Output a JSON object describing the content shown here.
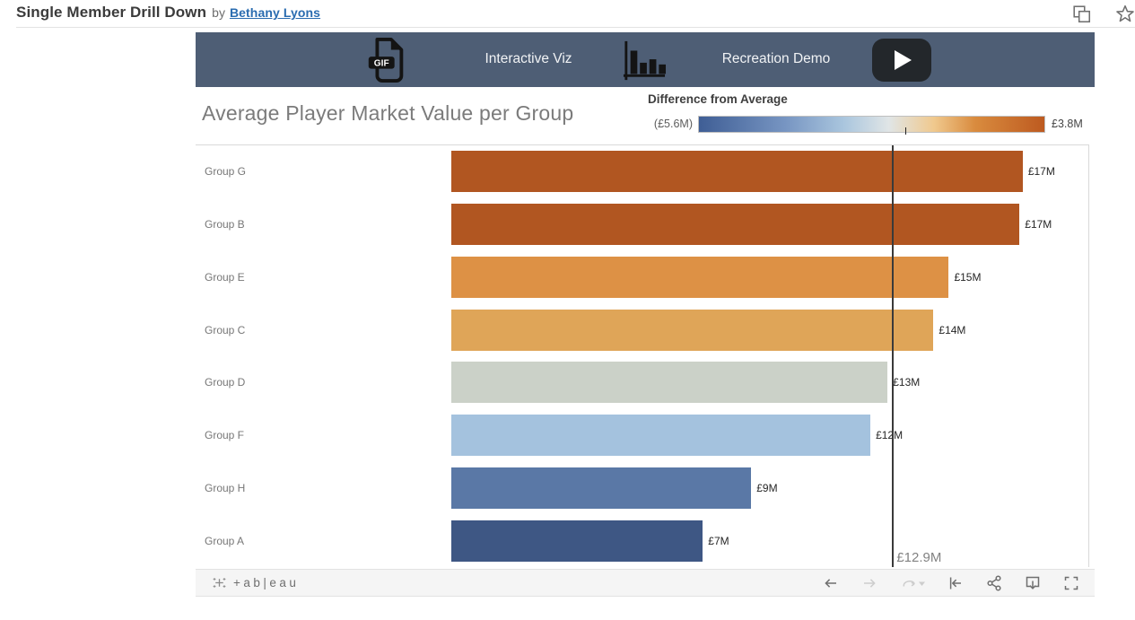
{
  "colors": {
    "banner_bg": "#4e5e75",
    "link": "#2a6cb0",
    "reference_line": "#3a3a3a",
    "toolbar_bg": "#f5f5f5"
  },
  "page_header": {
    "title": "Single Member Drill Down",
    "byline": "by",
    "author": "Bethany Lyons",
    "icons": {
      "duplicate": "duplicate-icon",
      "favorite": "star-icon"
    }
  },
  "banner": {
    "gif_badge": "GIF",
    "left_label": "Interactive Viz",
    "right_label": "Recreation Demo",
    "icons": [
      "gif-file-icon",
      "bar-chart-icon",
      "play-button"
    ]
  },
  "viz": {
    "title": "Average Player Market Value per Group",
    "legend": {
      "title": "Difference from Average",
      "min_label": "(£5.6M)",
      "max_label": "£3.8M",
      "tick_pct": 59.7,
      "gradient": [
        "#3f5e95 0%",
        "#7795c2 25%",
        "#aac6de 42%",
        "#e0e5e6 55%",
        "#f0c98e 68%",
        "#d98b3e 80%",
        "#bd5a20 100%"
      ]
    },
    "reference_line": {
      "label": "£12.9M",
      "position_pct": 69.2
    },
    "rows": [
      {
        "group": "Group G",
        "value_label": "£17M",
        "width_pct": 89.7,
        "color": "#b15621"
      },
      {
        "group": "Group B",
        "value_label": "£17M",
        "width_pct": 89.2,
        "color": "#b15621"
      },
      {
        "group": "Group E",
        "value_label": "£15M",
        "width_pct": 78.1,
        "color": "#dd9145"
      },
      {
        "group": "Group C",
        "value_label": "£14M",
        "width_pct": 75.7,
        "color": "#dfa558"
      },
      {
        "group": "Group D",
        "value_label": "£13M",
        "width_pct": 68.5,
        "color": "#cbd1c8"
      },
      {
        "group": "Group F",
        "value_label": "£12M",
        "width_pct": 65.8,
        "color": "#a4c2de"
      },
      {
        "group": "Group H",
        "value_label": "£9M",
        "width_pct": 47.1,
        "color": "#5a78a6"
      },
      {
        "group": "Group A",
        "value_label": "£7M",
        "width_pct": 39.5,
        "color": "#3e5784"
      }
    ]
  },
  "chart_data": {
    "type": "bar",
    "orientation": "horizontal",
    "title": "Average Player Market Value per Group",
    "categories": [
      "Group G",
      "Group B",
      "Group E",
      "Group C",
      "Group D",
      "Group F",
      "Group H",
      "Group A"
    ],
    "values_gbp_m": [
      16.7,
      16.6,
      14.6,
      14.1,
      12.8,
      12.3,
      8.8,
      7.4
    ],
    "value_labels": [
      "£17M",
      "£17M",
      "£15M",
      "£14M",
      "£13M",
      "£12M",
      "£9M",
      "£7M"
    ],
    "color_encoding": {
      "field": "Difference from Average",
      "min_label": "(£5.6M)",
      "max_label": "£3.8M",
      "palette": "orange-blue diverging"
    },
    "reference_line": {
      "value_gbp_m": 12.9,
      "label": "£12.9M"
    },
    "xlim": [
      0,
      18.6
    ],
    "grid": false,
    "legend_position": "top-right"
  },
  "footer": {
    "logo_text": "+ab|eau",
    "buttons": [
      {
        "name": "undo",
        "enabled": true
      },
      {
        "name": "redo",
        "enabled": false
      },
      {
        "name": "replay",
        "enabled": false
      },
      {
        "name": "reset",
        "enabled": true
      },
      {
        "name": "share",
        "enabled": true
      },
      {
        "name": "download",
        "enabled": true
      },
      {
        "name": "fullscreen",
        "enabled": true
      }
    ]
  }
}
